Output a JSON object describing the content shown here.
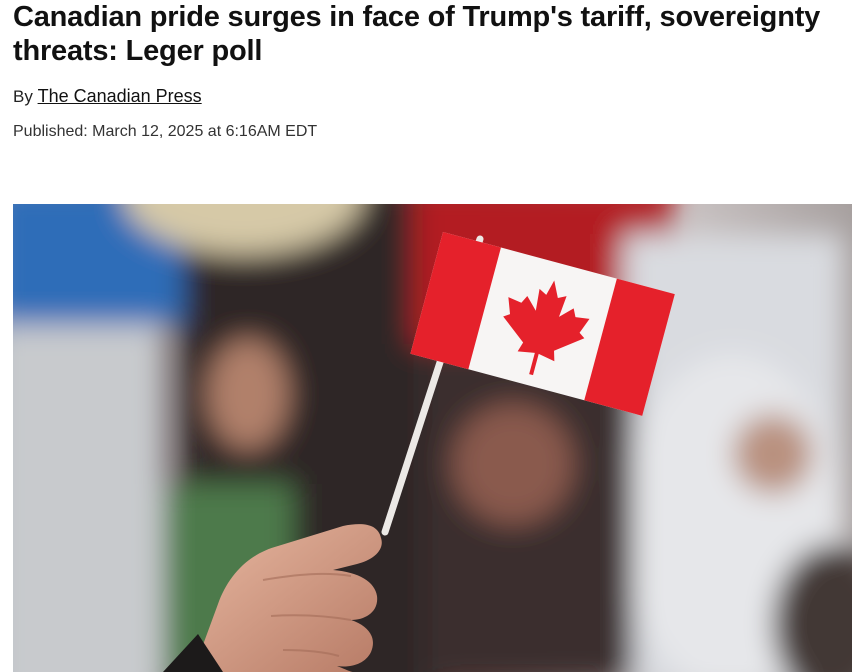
{
  "article": {
    "headline": "Canadian pride surges in face of Trump's tariff, sovereignty threats: Leger poll",
    "byline_prefix": "By",
    "author": "The Canadian Press",
    "published": "Published: March 12, 2025 at 6:16AM EDT"
  },
  "hero_image": {
    "icon": "canadian-flag",
    "colors": {
      "flag_red": "#e5212b",
      "flag_white": "#f7f5f4"
    }
  }
}
